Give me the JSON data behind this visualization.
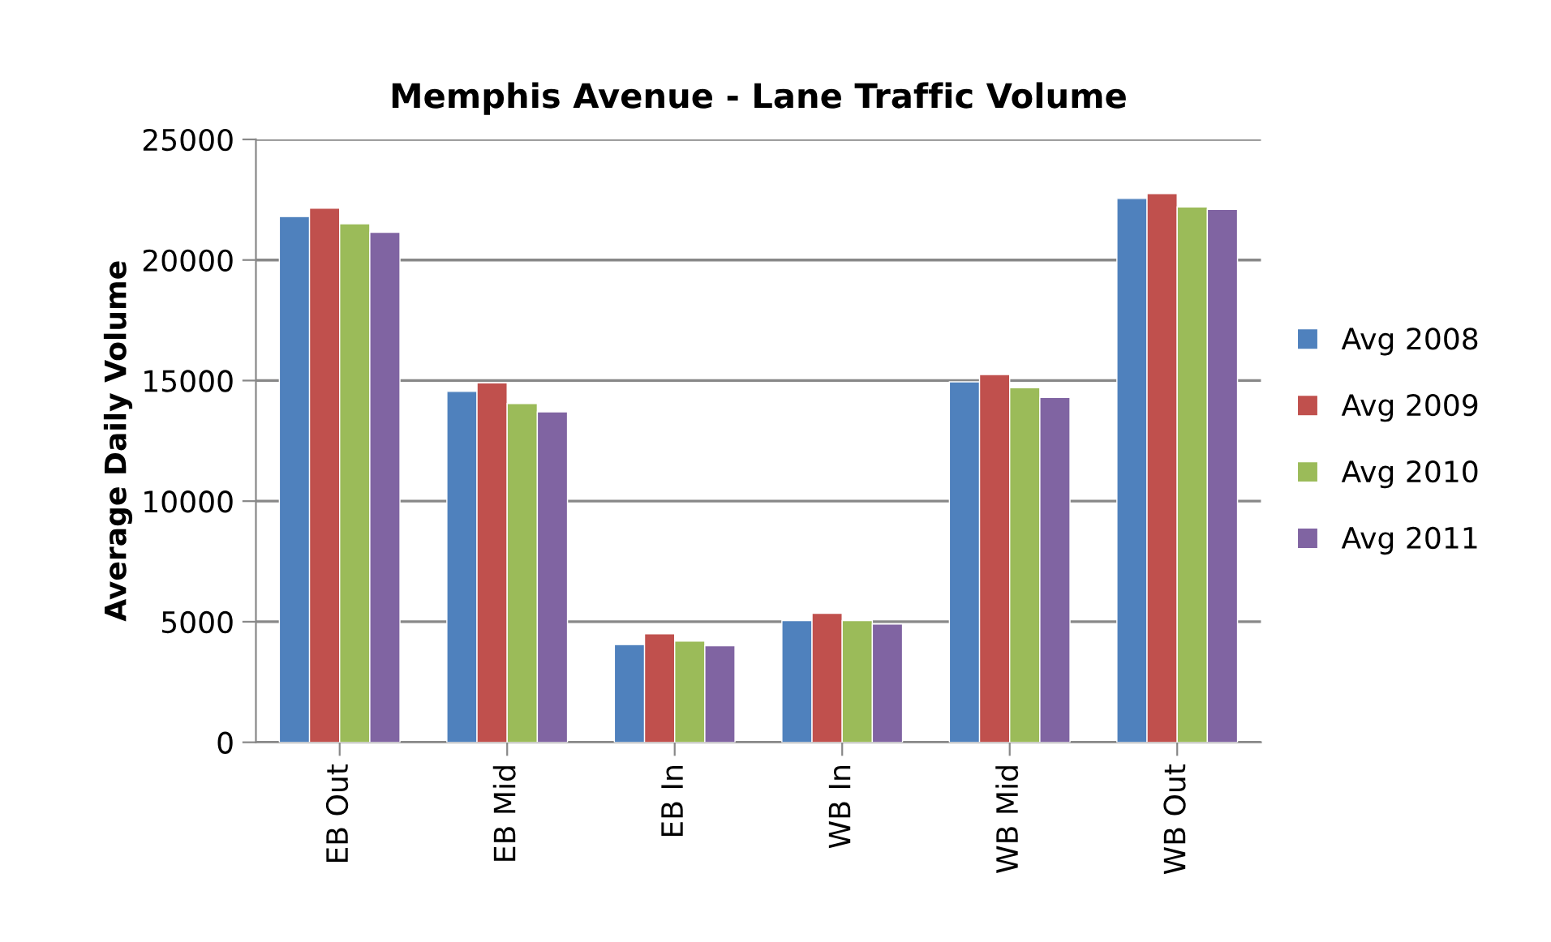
{
  "chart_data": {
    "type": "bar",
    "title": "Memphis Avenue - Lane Traffic Volume",
    "ylabel": "Average Daily Volume",
    "categories": [
      "EB Out",
      "EB Mid",
      "EB In",
      "WB In",
      "WB Mid",
      "WB Out"
    ],
    "series": [
      {
        "name": "Avg 2008",
        "color": "#4f81bd",
        "values": [
          21800,
          14550,
          4050,
          5050,
          14950,
          22550
        ]
      },
      {
        "name": "Avg 2009",
        "color": "#c0504d",
        "values": [
          22150,
          14900,
          4500,
          5350,
          15250,
          22750
        ]
      },
      {
        "name": "Avg 2010",
        "color": "#9bbb59",
        "values": [
          21500,
          14050,
          4200,
          5050,
          14700,
          22200
        ]
      },
      {
        "name": "Avg 2011",
        "color": "#8064a2",
        "values": [
          21150,
          13700,
          4000,
          4900,
          14300,
          22100
        ]
      }
    ],
    "ylim": [
      0,
      25000
    ],
    "yticks": [
      0,
      5000,
      10000,
      15000,
      20000,
      25000
    ],
    "grid": "y",
    "legend": "right"
  }
}
